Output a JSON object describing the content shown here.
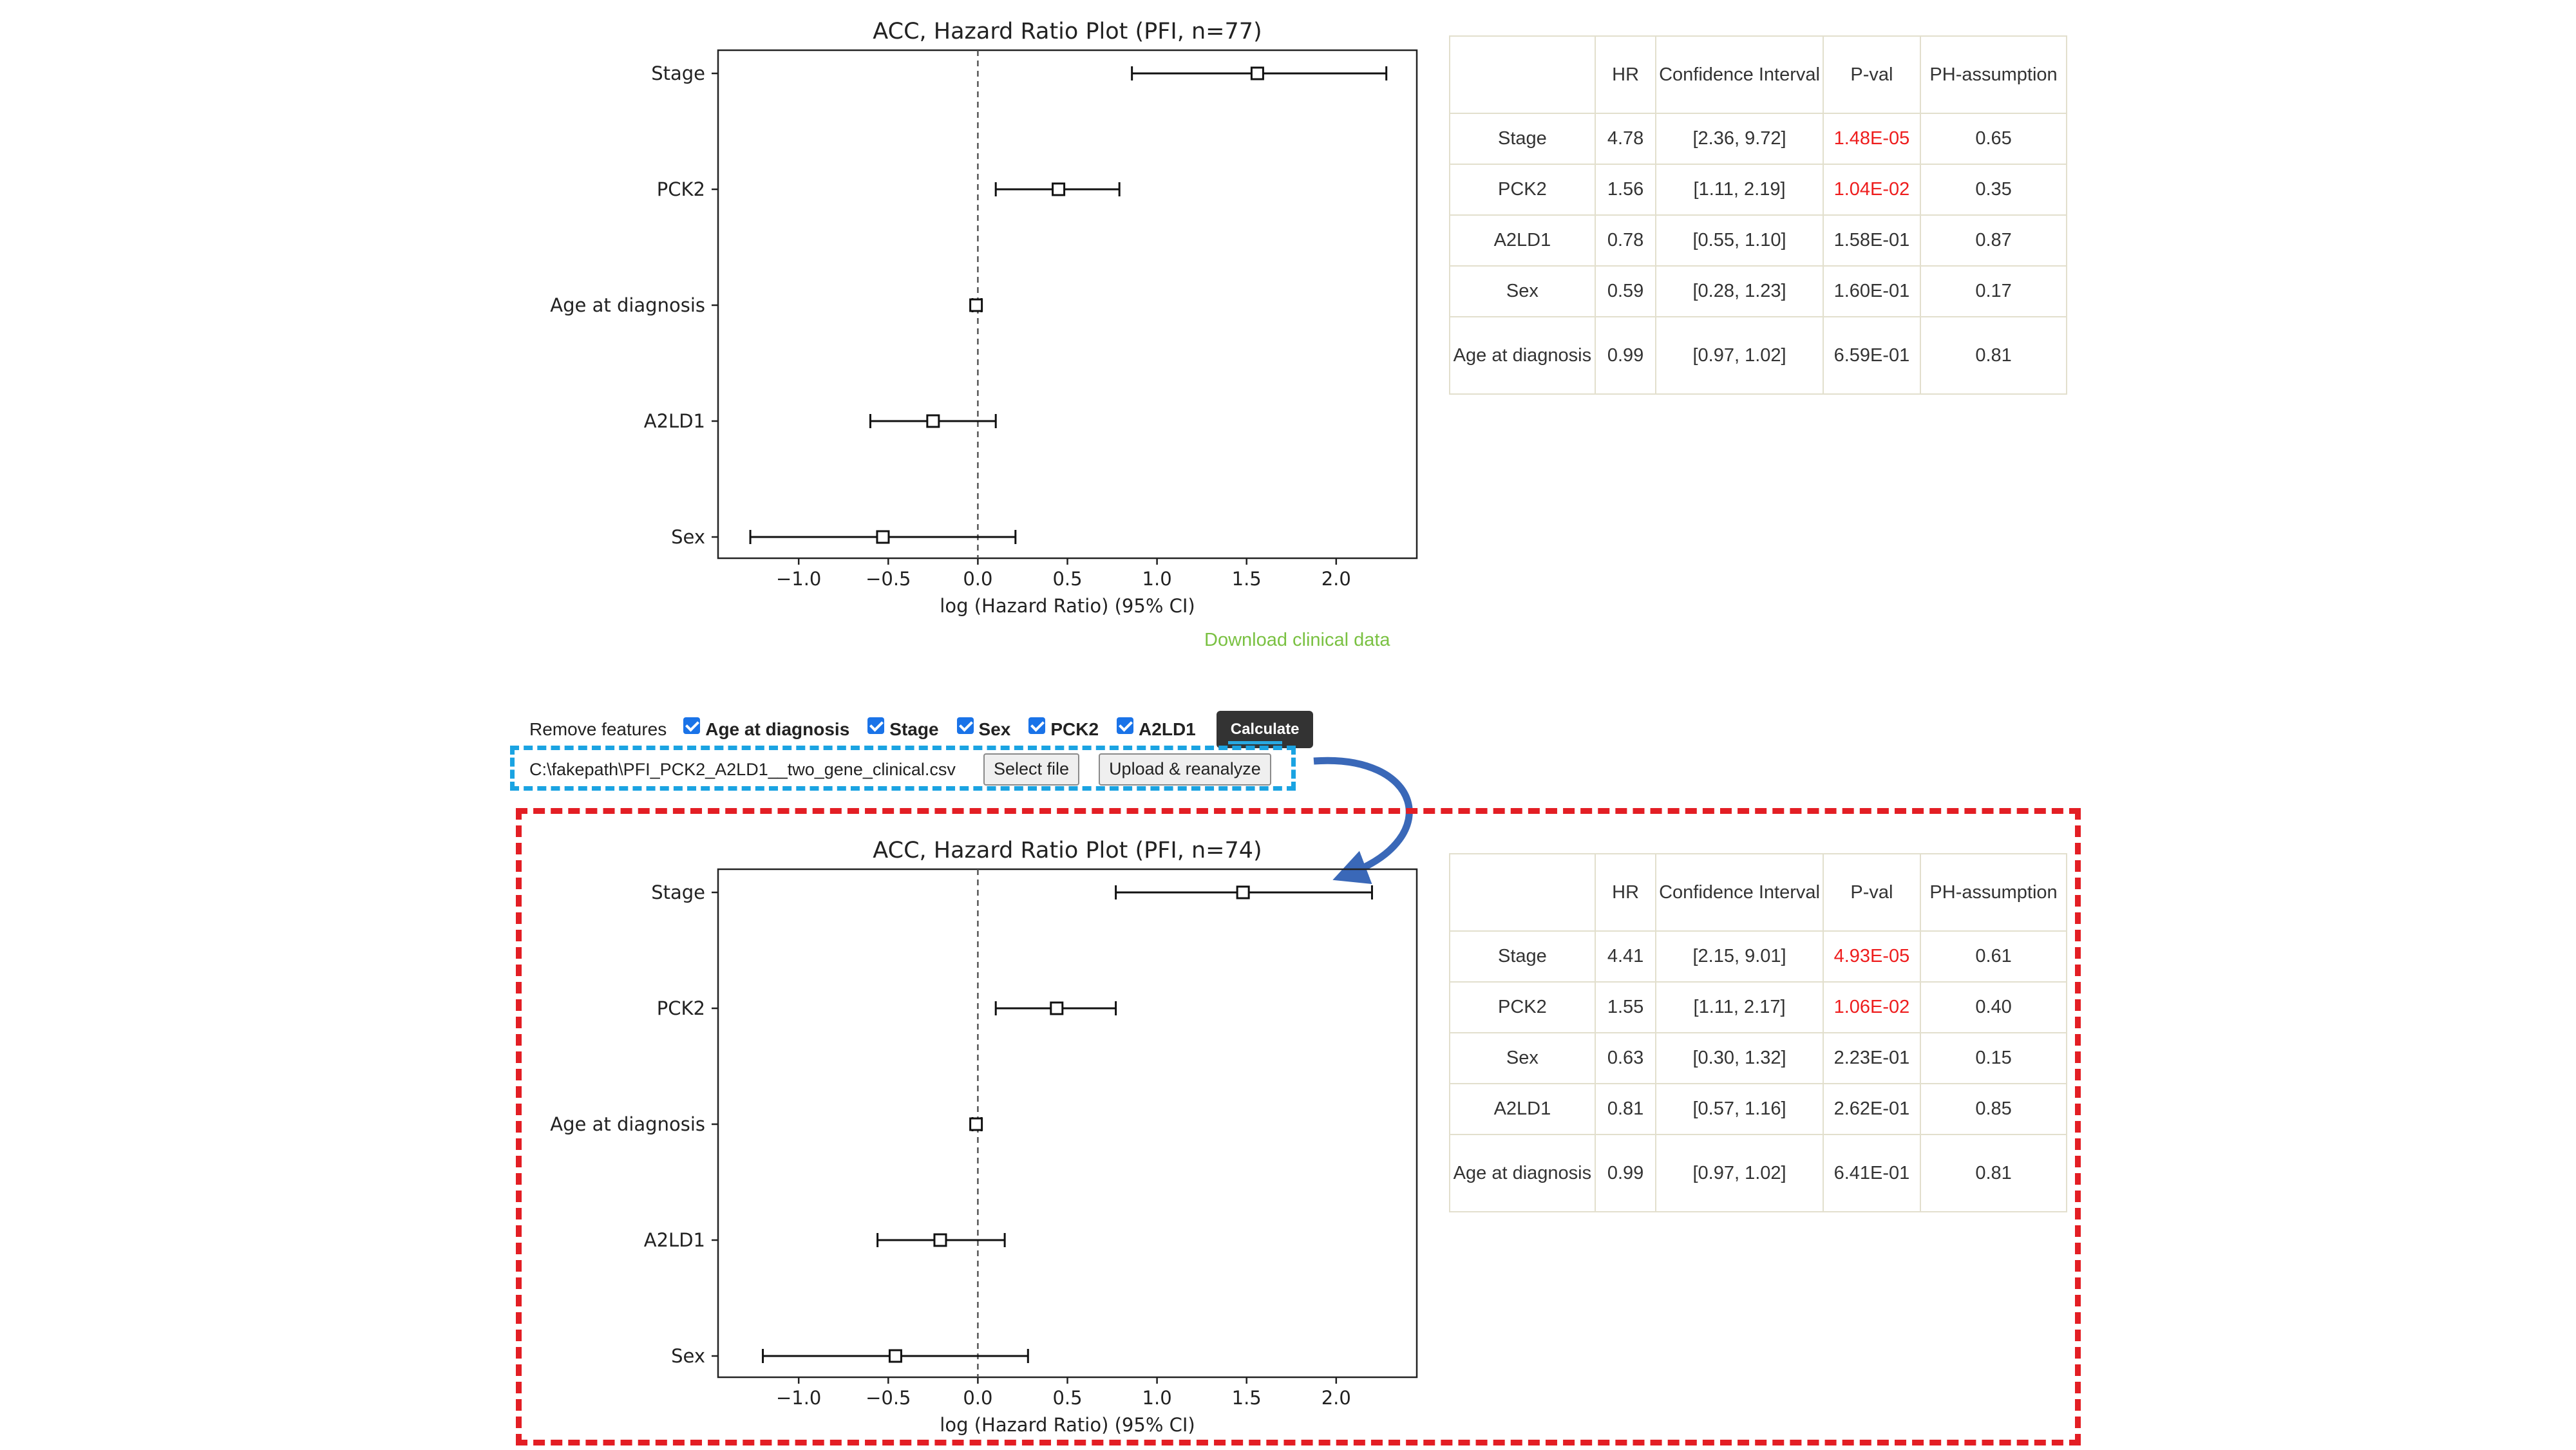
{
  "chart_data": [
    {
      "type": "forest",
      "title": "ACC, Hazard Ratio Plot (PFI, n=77)",
      "xlabel": "log (Hazard Ratio) (95% CI)",
      "ylabel": "",
      "xlim": [
        -1.45,
        2.45
      ],
      "xticks": [
        "−1.0",
        "−0.5",
        "0.0",
        "0.5",
        "1.0",
        "1.5",
        "2.0"
      ],
      "reference_line": 0,
      "categories": [
        "Stage",
        "PCK2",
        "Age at diagnosis",
        "A2LD1",
        "Sex"
      ],
      "values": [
        1.56,
        0.45,
        -0.01,
        -0.25,
        -0.53
      ],
      "ci_low": [
        0.86,
        0.1,
        -0.03,
        -0.6,
        -1.27
      ],
      "ci_high": [
        2.28,
        0.79,
        0.02,
        0.1,
        0.21
      ]
    },
    {
      "type": "forest",
      "title": "ACC, Hazard Ratio Plot (PFI, n=74)",
      "xlabel": "log (Hazard Ratio) (95% CI)",
      "ylabel": "",
      "xlim": [
        -1.45,
        2.45
      ],
      "xticks": [
        "−1.0",
        "−0.5",
        "0.0",
        "0.5",
        "1.0",
        "1.5",
        "2.0"
      ],
      "reference_line": 0,
      "categories": [
        "Stage",
        "PCK2",
        "Age at diagnosis",
        "A2LD1",
        "Sex"
      ],
      "values": [
        1.48,
        0.44,
        -0.01,
        -0.21,
        -0.46
      ],
      "ci_low": [
        0.77,
        0.1,
        -0.03,
        -0.56,
        -1.2
      ],
      "ci_high": [
        2.2,
        0.77,
        0.02,
        0.15,
        0.28
      ]
    }
  ],
  "table_top": {
    "headers": [
      "",
      "HR",
      "Confidence Interval",
      "P-val",
      "PH-assumption"
    ],
    "rows": [
      {
        "feature": "Stage",
        "hr": "4.78",
        "ci": "[2.36, 9.72]",
        "pval": "1.48E-05",
        "ph": "0.65",
        "significant": true
      },
      {
        "feature": "PCK2",
        "hr": "1.56",
        "ci": "[1.11, 2.19]",
        "pval": "1.04E-02",
        "ph": "0.35",
        "significant": true
      },
      {
        "feature": "A2LD1",
        "hr": "0.78",
        "ci": "[0.55, 1.10]",
        "pval": "1.58E-01",
        "ph": "0.87",
        "significant": false
      },
      {
        "feature": "Sex",
        "hr": "0.59",
        "ci": "[0.28, 1.23]",
        "pval": "1.60E-01",
        "ph": "0.17",
        "significant": false
      },
      {
        "feature": "Age at diagnosis",
        "hr": "0.99",
        "ci": "[0.97, 1.02]",
        "pval": "6.59E-01",
        "ph": "0.81",
        "significant": false
      }
    ]
  },
  "table_bottom": {
    "headers": [
      "",
      "HR",
      "Confidence Interval",
      "P-val",
      "PH-assumption"
    ],
    "rows": [
      {
        "feature": "Stage",
        "hr": "4.41",
        "ci": "[2.15, 9.01]",
        "pval": "4.93E-05",
        "ph": "0.61",
        "significant": true
      },
      {
        "feature": "PCK2",
        "hr": "1.55",
        "ci": "[1.11, 2.17]",
        "pval": "1.06E-02",
        "ph": "0.40",
        "significant": true
      },
      {
        "feature": "Sex",
        "hr": "0.63",
        "ci": "[0.30, 1.32]",
        "pval": "2.23E-01",
        "ph": "0.15",
        "significant": false
      },
      {
        "feature": "A2LD1",
        "hr": "0.81",
        "ci": "[0.57, 1.16]",
        "pval": "2.62E-01",
        "ph": "0.85",
        "significant": false
      },
      {
        "feature": "Age at diagnosis",
        "hr": "0.99",
        "ci": "[0.97, 1.02]",
        "pval": "6.41E-01",
        "ph": "0.81",
        "significant": false
      }
    ]
  },
  "download_link": "Download clinical data",
  "controls": {
    "remove_label": "Remove features",
    "features": [
      "Age at diagnosis",
      "Stage",
      "Sex",
      "PCK2",
      "A2LD1"
    ],
    "calculate_label": "Calculate"
  },
  "upload": {
    "file_path": "C:\\fakepath\\PFI_PCK2_A2LD1__two_gene_clinical.csv",
    "select_label": "Select file",
    "upload_label": "Upload & reanalyze"
  },
  "colors": {
    "significant_pval": "#ee1d1d",
    "download_link": "#7ac142",
    "upload_box_border": "#1aa3e2",
    "result_box_border": "#e31e24",
    "arrow": "#3a68b8"
  }
}
